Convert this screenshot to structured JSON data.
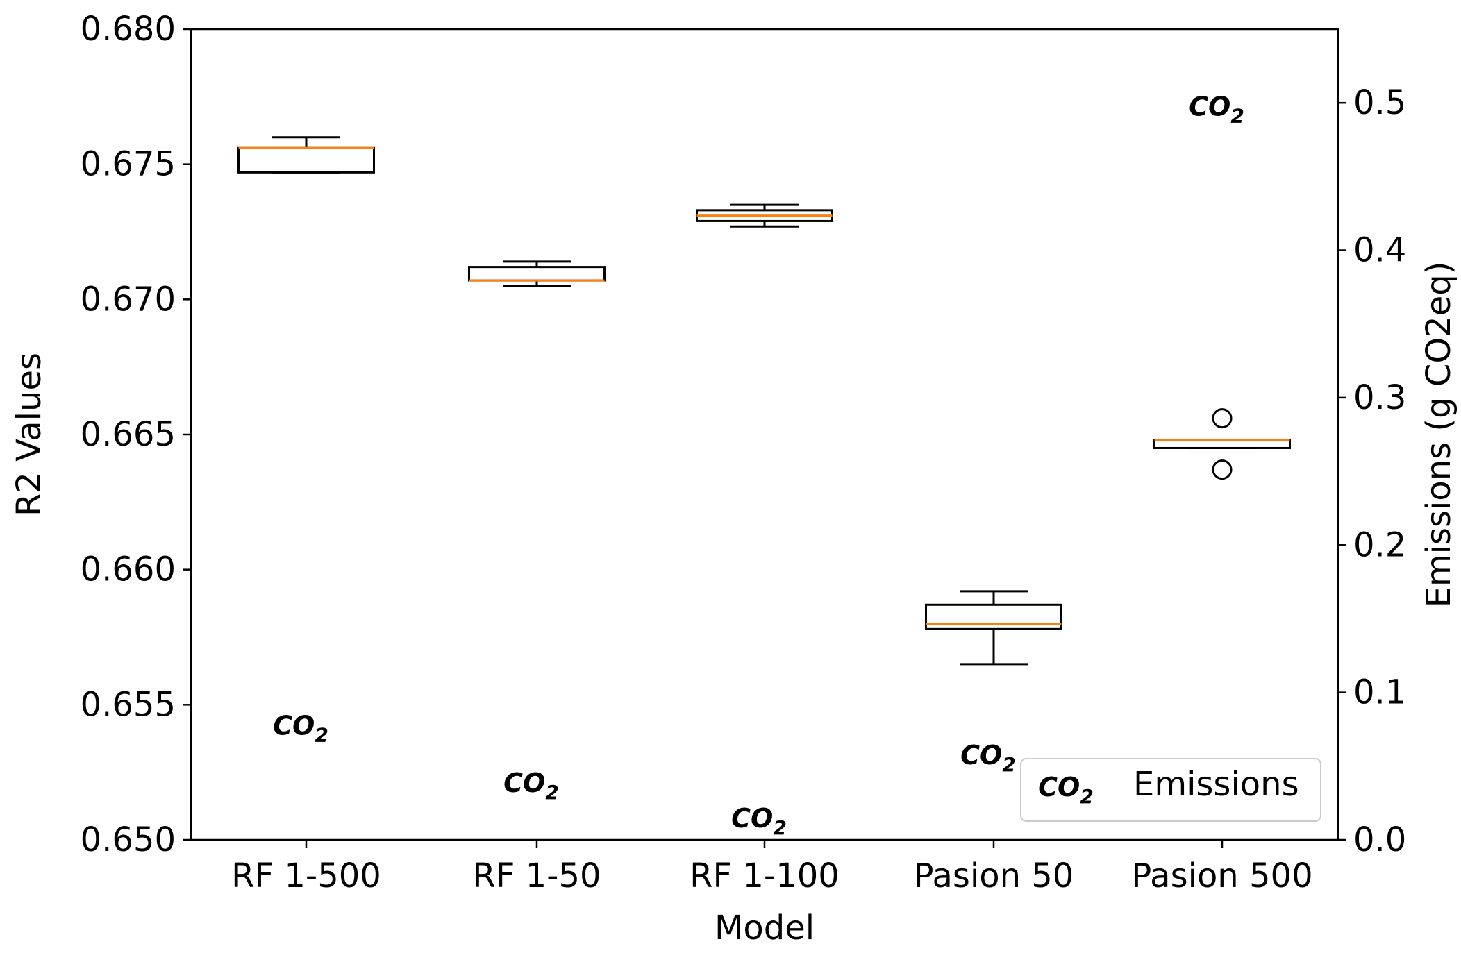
{
  "chart_data": {
    "type": "box",
    "xlabel": "Model",
    "ylabel": "R2 Values",
    "y2label": "Emissions (g CO2eq)",
    "ylim": [
      0.65,
      0.68
    ],
    "y2lim": [
      0.0,
      0.55
    ],
    "yticks": [
      "0.650",
      "0.655",
      "0.660",
      "0.665",
      "0.670",
      "0.675",
      "0.680"
    ],
    "y2ticks": [
      "0.0",
      "0.1",
      "0.2",
      "0.3",
      "0.4",
      "0.5"
    ],
    "categories": [
      "RF 1-500",
      "RF 1-50",
      "RF 1-100",
      "Pasion 50",
      "Pasion 500"
    ],
    "boxes": [
      {
        "whisker_low": 0.6747,
        "q1": 0.6747,
        "median": 0.6756,
        "q3": 0.6756,
        "whisker_high": 0.676,
        "fliers": []
      },
      {
        "whisker_low": 0.6705,
        "q1": 0.6707,
        "median": 0.6707,
        "q3": 0.6712,
        "whisker_high": 0.6714,
        "fliers": []
      },
      {
        "whisker_low": 0.6727,
        "q1": 0.6729,
        "median": 0.6731,
        "q3": 0.6733,
        "whisker_high": 0.6735,
        "fliers": []
      },
      {
        "whisker_low": 0.6565,
        "q1": 0.6578,
        "median": 0.658,
        "q3": 0.6587,
        "whisker_high": 0.6592,
        "fliers": []
      },
      {
        "whisker_low": 0.6645,
        "q1": 0.6645,
        "median": 0.6648,
        "q3": 0.6648,
        "whisker_high": 0.6648,
        "fliers": [
          0.6656,
          0.6637
        ]
      }
    ],
    "emissions": {
      "name": "Emissions",
      "marker_text": "CO2",
      "values": [
        0.078,
        0.039,
        0.015,
        0.058,
        0.498
      ]
    },
    "legend": {
      "position": "lower-right",
      "label": "Emissions"
    },
    "colors": {
      "median": "#ff7f0e",
      "box": "#000000",
      "emissions": "#008000"
    }
  }
}
